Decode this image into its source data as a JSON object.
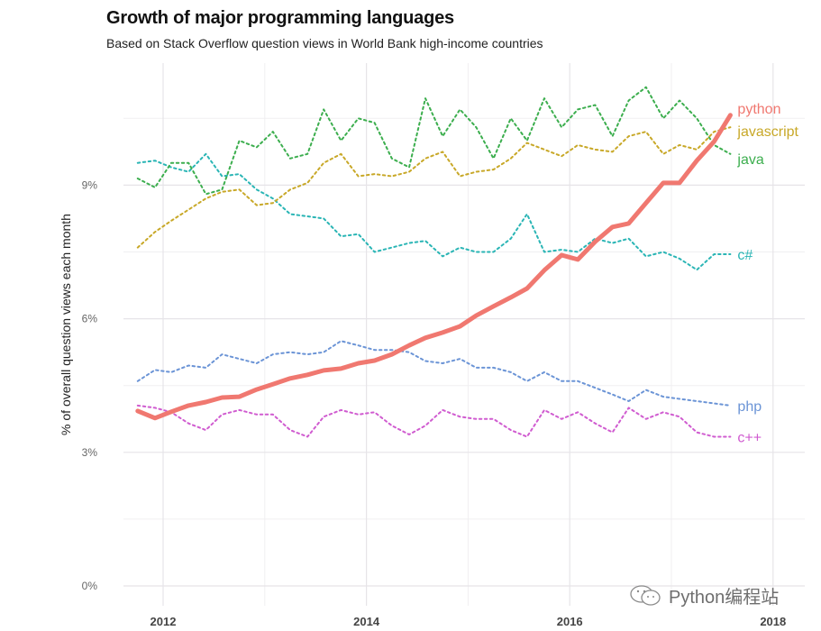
{
  "chart_data": {
    "type": "line",
    "title": "Growth of major programming languages",
    "subtitle": "Based on Stack Overflow question views in World Bank high-income countries",
    "xlabel": "",
    "ylabel": "% of overall question views each month",
    "xlim": [
      2011.6,
      2018.3
    ],
    "ylim": [
      -0.2,
      11.5
    ],
    "x_ticks": [
      2012,
      2014,
      2016,
      2018
    ],
    "x_tick_labels": [
      "2012",
      "2014",
      "2016",
      "2018"
    ],
    "x_minor_ticks": [
      2013,
      2015,
      2017
    ],
    "y_ticks": [
      0,
      3,
      6,
      9
    ],
    "y_tick_labels": [
      "0%",
      "3%",
      "6%",
      "9%"
    ],
    "y_minor_ticks": [
      1.5,
      4.5,
      7.5,
      10.5
    ],
    "grid": true,
    "legend": "direct labels at line ends (right)",
    "x": [
      2011.75,
      2011.92,
      2012.08,
      2012.25,
      2012.42,
      2012.58,
      2012.75,
      2012.92,
      2013.08,
      2013.25,
      2013.42,
      2013.58,
      2013.75,
      2013.92,
      2014.08,
      2014.25,
      2014.42,
      2014.58,
      2014.75,
      2014.92,
      2015.08,
      2015.25,
      2015.42,
      2015.58,
      2015.75,
      2015.92,
      2016.08,
      2016.25,
      2016.42,
      2016.58,
      2016.75,
      2016.92,
      2017.08,
      2017.25,
      2017.42,
      2017.58
    ],
    "series": [
      {
        "name": "python",
        "color": "#f07870",
        "style": "solid",
        "values": [
          3.93,
          3.77,
          3.91,
          4.05,
          4.13,
          4.23,
          4.25,
          4.41,
          4.53,
          4.66,
          4.74,
          4.84,
          4.88,
          5.0,
          5.06,
          5.2,
          5.4,
          5.57,
          5.69,
          5.83,
          6.07,
          6.28,
          6.48,
          6.68,
          7.09,
          7.43,
          7.33,
          7.73,
          8.06,
          8.14,
          8.6,
          9.05,
          9.05,
          9.55,
          9.98,
          10.57
        ]
      },
      {
        "name": "javascript",
        "color": "#c8a828",
        "style": "dotted",
        "values": [
          7.6,
          7.95,
          8.2,
          8.45,
          8.7,
          8.85,
          8.9,
          8.55,
          8.6,
          8.9,
          9.05,
          9.5,
          9.7,
          9.2,
          9.25,
          9.2,
          9.3,
          9.6,
          9.75,
          9.2,
          9.3,
          9.35,
          9.6,
          9.95,
          9.8,
          9.65,
          9.9,
          9.8,
          9.75,
          10.1,
          10.2,
          9.7,
          9.9,
          9.8,
          10.2,
          10.3
        ]
      },
      {
        "name": "java",
        "color": "#3cae4e",
        "style": "dotted",
        "values": [
          9.15,
          8.95,
          9.5,
          9.5,
          8.8,
          8.9,
          10.0,
          9.85,
          10.2,
          9.6,
          9.7,
          10.7,
          10.0,
          10.5,
          10.4,
          9.6,
          9.4,
          10.95,
          10.1,
          10.7,
          10.3,
          9.6,
          10.5,
          10.0,
          10.95,
          10.3,
          10.7,
          10.8,
          10.1,
          10.9,
          11.2,
          10.5,
          10.9,
          10.5,
          9.9,
          9.7
        ]
      },
      {
        "name": "c#",
        "color": "#2ab5b5",
        "style": "dotted",
        "values": [
          9.5,
          9.55,
          9.4,
          9.3,
          9.7,
          9.2,
          9.25,
          8.9,
          8.7,
          8.35,
          8.3,
          8.25,
          7.85,
          7.9,
          7.5,
          7.6,
          7.7,
          7.75,
          7.4,
          7.6,
          7.5,
          7.5,
          7.8,
          8.35,
          7.5,
          7.55,
          7.5,
          7.8,
          7.7,
          7.8,
          7.4,
          7.5,
          7.35,
          7.1,
          7.45,
          7.45
        ]
      },
      {
        "name": "php",
        "color": "#6b94d6",
        "style": "dotted",
        "values": [
          4.6,
          4.85,
          4.8,
          4.95,
          4.9,
          5.2,
          5.1,
          5.0,
          5.2,
          5.25,
          5.2,
          5.25,
          5.5,
          5.4,
          5.3,
          5.3,
          5.25,
          5.05,
          5.0,
          5.1,
          4.9,
          4.9,
          4.8,
          4.6,
          4.8,
          4.6,
          4.6,
          4.45,
          4.3,
          4.15,
          4.4,
          4.25,
          4.2,
          4.15,
          4.1,
          4.05
        ]
      },
      {
        "name": "c++",
        "color": "#d05cd0",
        "style": "dotted",
        "values": [
          4.05,
          4.0,
          3.9,
          3.65,
          3.5,
          3.85,
          3.95,
          3.85,
          3.85,
          3.5,
          3.35,
          3.8,
          3.95,
          3.85,
          3.9,
          3.6,
          3.4,
          3.6,
          3.95,
          3.8,
          3.75,
          3.75,
          3.5,
          3.35,
          3.95,
          3.75,
          3.9,
          3.65,
          3.45,
          4.0,
          3.75,
          3.9,
          3.8,
          3.45,
          3.35,
          3.35
        ]
      }
    ],
    "end_labels": [
      {
        "series": "python",
        "text": "python"
      },
      {
        "series": "javascript",
        "text": "javascript"
      },
      {
        "series": "java",
        "text": "java"
      },
      {
        "series": "c#",
        "text": "c#"
      },
      {
        "series": "php",
        "text": "php"
      },
      {
        "series": "c++",
        "text": "c++"
      }
    ]
  },
  "watermark": {
    "icon": "wechat-icon",
    "text": "Python编程站"
  }
}
